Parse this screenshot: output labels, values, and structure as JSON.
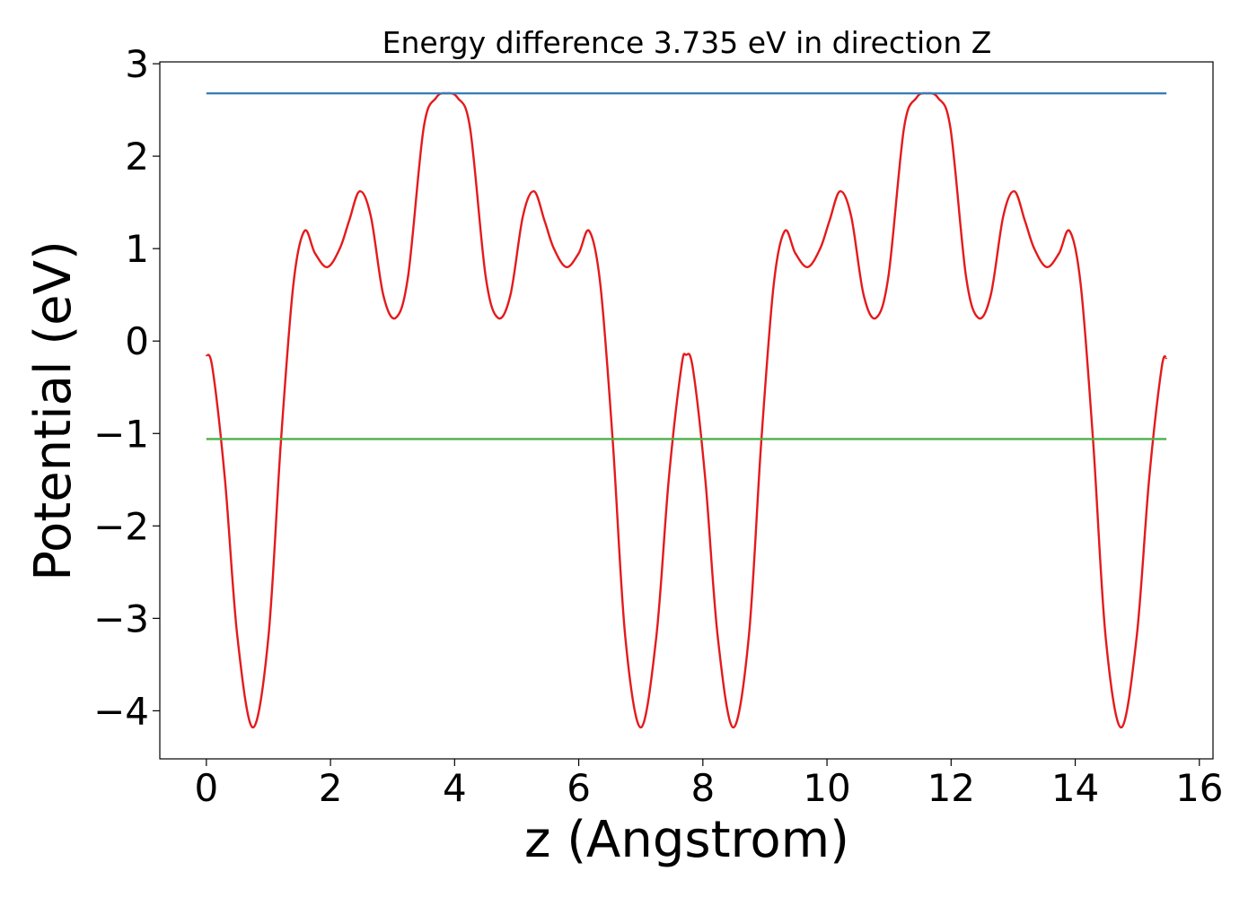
{
  "chart_data": {
    "type": "line",
    "title": "Energy difference 3.735 eV in direction Z",
    "xlabel": "z (Angstrom)",
    "ylabel": "Potential (eV)",
    "xlim": [
      -0.75,
      16.22
    ],
    "ylim": [
      -4.52,
      3.02
    ],
    "xticks": [
      0,
      2,
      4,
      6,
      8,
      10,
      12,
      14,
      16
    ],
    "yticks": [
      {
        "value": -4,
        "label": "−4"
      },
      {
        "value": -3,
        "label": "−3"
      },
      {
        "value": -2,
        "label": "−2"
      },
      {
        "value": -1,
        "label": "−1"
      },
      0,
      1,
      2,
      3
    ],
    "grid": false,
    "series": [
      {
        "color": "#e41a1c",
        "x": [
          0,
          0.1,
          0.3,
          0.5,
          0.75,
          1.0,
          1.2,
          1.4,
          1.58,
          1.75,
          1.95,
          2.15,
          2.3,
          2.47,
          2.65,
          2.85,
          3.05,
          3.25,
          3.5,
          3.7,
          3.87,
          4.05,
          4.25,
          4.5,
          4.7,
          4.9,
          5.1,
          5.28,
          5.45,
          5.6,
          5.8,
          6.0,
          6.17,
          6.35,
          6.55,
          6.75,
          7.0,
          7.25,
          7.45,
          7.65,
          7.73,
          7.84,
          8.04,
          8.24,
          8.49,
          8.74,
          8.94,
          9.14,
          9.32,
          9.49,
          9.69,
          9.89,
          10.04,
          10.21,
          10.39,
          10.59,
          10.79,
          10.99,
          11.24,
          11.44,
          11.61,
          11.79,
          11.99,
          12.24,
          12.44,
          12.64,
          12.84,
          13.02,
          13.19,
          13.34,
          13.54,
          13.74,
          13.91,
          14.09,
          14.29,
          14.49,
          14.74,
          14.99,
          15.19,
          15.39,
          15.47
        ],
        "values": [
          -0.15,
          -0.3,
          -1.5,
          -3.2,
          -4.18,
          -3.2,
          -1.1,
          0.6,
          1.19,
          0.95,
          0.8,
          1.0,
          1.3,
          1.62,
          1.35,
          0.5,
          0.25,
          0.7,
          2.3,
          2.63,
          2.68,
          2.63,
          2.3,
          0.7,
          0.25,
          0.5,
          1.35,
          1.62,
          1.3,
          1.0,
          0.8,
          0.95,
          1.19,
          0.6,
          -1.1,
          -3.2,
          -4.18,
          -3.2,
          -1.5,
          -0.3,
          -0.15,
          -0.3,
          -1.5,
          -3.2,
          -4.18,
          -3.2,
          -1.1,
          0.6,
          1.19,
          0.95,
          0.8,
          1.0,
          1.3,
          1.62,
          1.35,
          0.5,
          0.25,
          0.7,
          2.3,
          2.63,
          2.68,
          2.63,
          2.3,
          0.7,
          0.25,
          0.5,
          1.35,
          1.62,
          1.3,
          1.0,
          0.8,
          0.95,
          1.19,
          0.6,
          -1.1,
          -3.2,
          -4.18,
          -3.2,
          -1.5,
          -0.3,
          -0.18
        ]
      },
      {
        "color": "#377eb8",
        "x": [
          0,
          15.47
        ],
        "values": [
          2.68,
          2.68
        ]
      },
      {
        "color": "#4daf4a",
        "x": [
          0,
          15.47
        ],
        "values": [
          -1.06,
          -1.06
        ]
      }
    ]
  }
}
